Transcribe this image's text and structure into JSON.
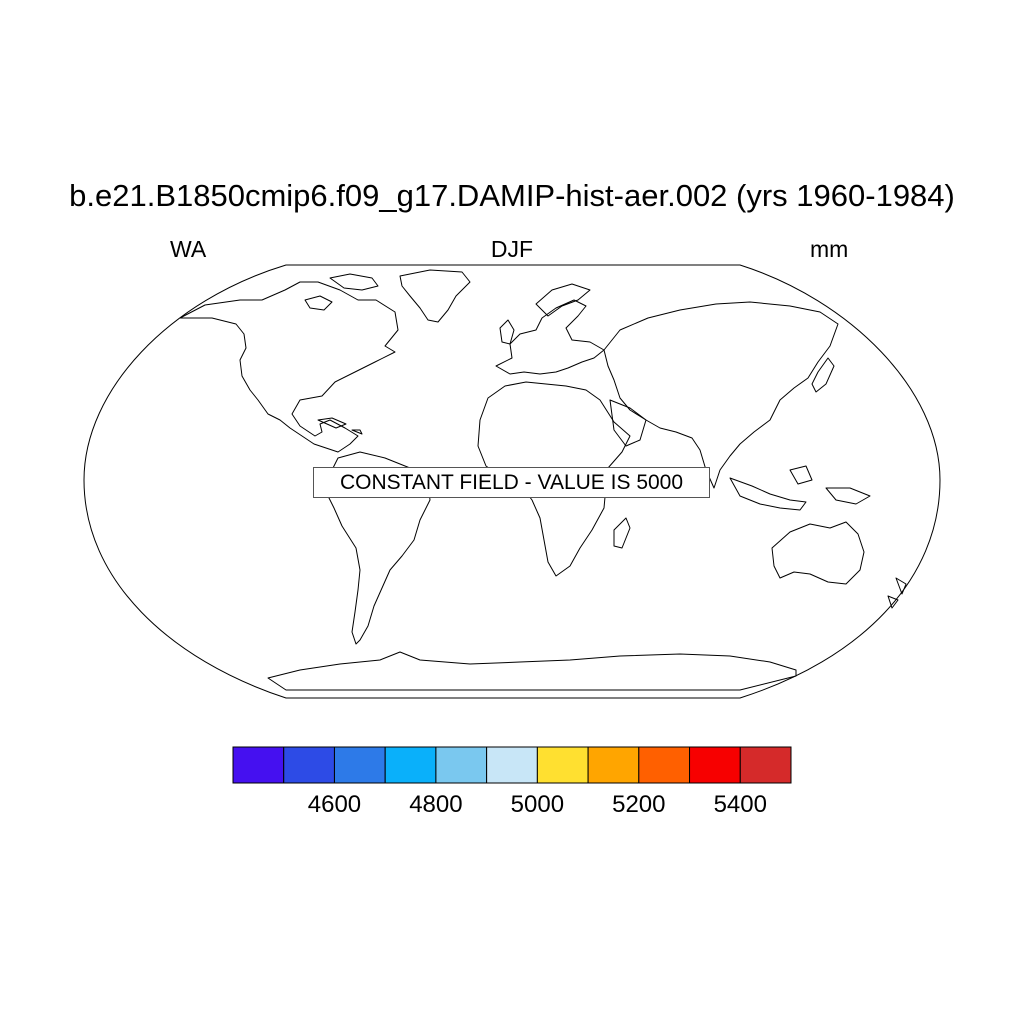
{
  "plot": {
    "title": "b.e21.B1850cmip6.f09_g17.DAMIP-hist-aer.002 (yrs 1960-1984)",
    "left_label": "WA",
    "center_label": "DJF",
    "right_label": "mm",
    "constant_field_text": "CONSTANT FIELD - VALUE IS 5000"
  },
  "colorbar": {
    "colors": [
      "#4510f0",
      "#2d4be6",
      "#2d7ae8",
      "#0ab0fa",
      "#7ac8ef",
      "#c8e6f7",
      "#ffe030",
      "#ffa500",
      "#ff6000",
      "#f70000",
      "#d52a2a"
    ],
    "levels": [
      4500,
      4600,
      4700,
      4800,
      4900,
      5000,
      5100,
      5200,
      5300,
      5400
    ],
    "tick_labels": [
      "4600",
      "4800",
      "5000",
      "5200",
      "5400"
    ]
  }
}
